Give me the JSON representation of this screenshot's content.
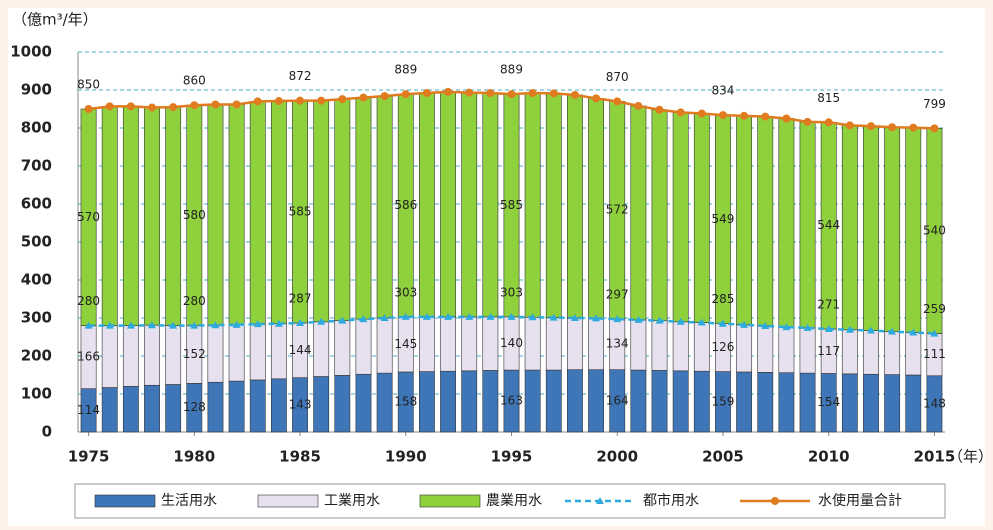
{
  "chart_data": {
    "type": "bar",
    "stacked": true,
    "y_label": "（億m³/年）",
    "x_label": "（年）",
    "x": [
      1975,
      1976,
      1977,
      1978,
      1979,
      1980,
      1981,
      1982,
      1983,
      1984,
      1985,
      1986,
      1987,
      1988,
      1989,
      1990,
      1991,
      1992,
      1993,
      1994,
      1995,
      1996,
      1997,
      1998,
      1999,
      2000,
      2001,
      2002,
      2003,
      2004,
      2005,
      2006,
      2007,
      2008,
      2009,
      2010,
      2011,
      2012,
      2013,
      2014,
      2015
    ],
    "xlim": [
      1974.5,
      2015.5
    ],
    "xticks": [
      1975,
      1980,
      1985,
      1990,
      1995,
      2000,
      2005,
      2010,
      2015
    ],
    "ylim": [
      0,
      1000
    ],
    "yticks": [
      0,
      100,
      200,
      300,
      400,
      500,
      600,
      700,
      800,
      900,
      1000
    ],
    "grid": true,
    "legend": "bottom",
    "series": [
      {
        "name": "生活用水",
        "type": "bar",
        "color": "#3f76b8",
        "values": [
          114,
          117,
          120,
          123,
          125,
          128,
          131,
          134,
          137,
          140,
          143,
          146,
          149,
          152,
          155,
          158,
          159,
          160,
          161,
          162,
          163,
          163,
          163,
          164,
          164,
          164,
          163,
          162,
          161,
          160,
          159,
          158,
          157,
          156,
          155,
          154,
          153,
          152,
          151,
          150,
          148
        ],
        "value_labels": [
          "114",
          null,
          null,
          null,
          null,
          "128",
          null,
          null,
          null,
          null,
          "143",
          null,
          null,
          null,
          null,
          "158",
          null,
          null,
          null,
          null,
          "163",
          null,
          null,
          null,
          null,
          "164",
          null,
          null,
          null,
          null,
          "159",
          null,
          null,
          null,
          null,
          "154",
          null,
          null,
          null,
          null,
          "148"
        ]
      },
      {
        "name": "工業用水",
        "type": "bar",
        "color": "#e7e1ef",
        "values": [
          166,
          163,
          160,
          158,
          155,
          152,
          150,
          148,
          147,
          145,
          144,
          144,
          144,
          145,
          145,
          145,
          144,
          143,
          142,
          141,
          140,
          139,
          138,
          136,
          135,
          134,
          132,
          131,
          129,
          128,
          126,
          124,
          122,
          120,
          119,
          117,
          116,
          115,
          113,
          112,
          111
        ],
        "value_labels": [
          "166",
          null,
          null,
          null,
          null,
          "152",
          null,
          null,
          null,
          null,
          "144",
          null,
          null,
          null,
          null,
          "145",
          null,
          null,
          null,
          null,
          "140",
          null,
          null,
          null,
          null,
          "134",
          null,
          null,
          null,
          null,
          "126",
          null,
          null,
          null,
          null,
          "117",
          null,
          null,
          null,
          null,
          "111"
        ]
      },
      {
        "name": "農業用水",
        "type": "bar",
        "color": "#8fd13c",
        "values": [
          570,
          577,
          577,
          573,
          575,
          580,
          581,
          580,
          586,
          586,
          585,
          582,
          583,
          583,
          584,
          586,
          589,
          592,
          590,
          589,
          585,
          590,
          590,
          587,
          579,
          572,
          563,
          555,
          551,
          550,
          549,
          550,
          551,
          549,
          542,
          544,
          538,
          538,
          538,
          539,
          540
        ],
        "value_labels": [
          "570",
          null,
          null,
          null,
          null,
          "580",
          null,
          null,
          null,
          null,
          "585",
          null,
          null,
          null,
          null,
          "586",
          null,
          null,
          null,
          null,
          "585",
          null,
          null,
          null,
          null,
          "572",
          null,
          null,
          null,
          null,
          "549",
          null,
          null,
          null,
          null,
          "544",
          null,
          null,
          null,
          null,
          "540"
        ]
      },
      {
        "name": "都市用水",
        "type": "line",
        "color": "#2eaadc",
        "line_style": "dashed",
        "marker": "triangle",
        "values": [
          280,
          280,
          280,
          281,
          280,
          280,
          281,
          282,
          284,
          285,
          287,
          290,
          293,
          297,
          300,
          303,
          303,
          303,
          303,
          303,
          303,
          302,
          301,
          300,
          299,
          297,
          295,
          293,
          290,
          288,
          285,
          282,
          279,
          276,
          274,
          271,
          269,
          267,
          264,
          262,
          259
        ],
        "value_labels": [
          "280",
          null,
          null,
          null,
          null,
          "280",
          null,
          null,
          null,
          null,
          "287",
          null,
          null,
          null,
          null,
          "303",
          null,
          null,
          null,
          null,
          "303",
          null,
          null,
          null,
          null,
          "297",
          null,
          null,
          null,
          null,
          "285",
          null,
          null,
          null,
          null,
          "271",
          null,
          null,
          null,
          null,
          "259"
        ]
      },
      {
        "name": "水使用量合計",
        "type": "line",
        "color": "#e07b20",
        "line_style": "solid",
        "marker": "circle",
        "values": [
          850,
          857,
          857,
          854,
          855,
          860,
          862,
          862,
          870,
          871,
          872,
          872,
          876,
          880,
          884,
          889,
          892,
          895,
          893,
          892,
          889,
          892,
          891,
          887,
          878,
          870,
          858,
          848,
          841,
          838,
          834,
          832,
          830,
          825,
          816,
          815,
          807,
          805,
          802,
          801,
          799
        ],
        "value_labels": [
          "850",
          null,
          null,
          null,
          null,
          "860",
          null,
          null,
          null,
          null,
          "872",
          null,
          null,
          null,
          null,
          "889",
          null,
          null,
          null,
          null,
          "889",
          null,
          null,
          null,
          null,
          "870",
          null,
          null,
          null,
          null,
          "834",
          null,
          null,
          null,
          null,
          "815",
          null,
          null,
          null,
          null,
          "799"
        ]
      }
    ]
  }
}
